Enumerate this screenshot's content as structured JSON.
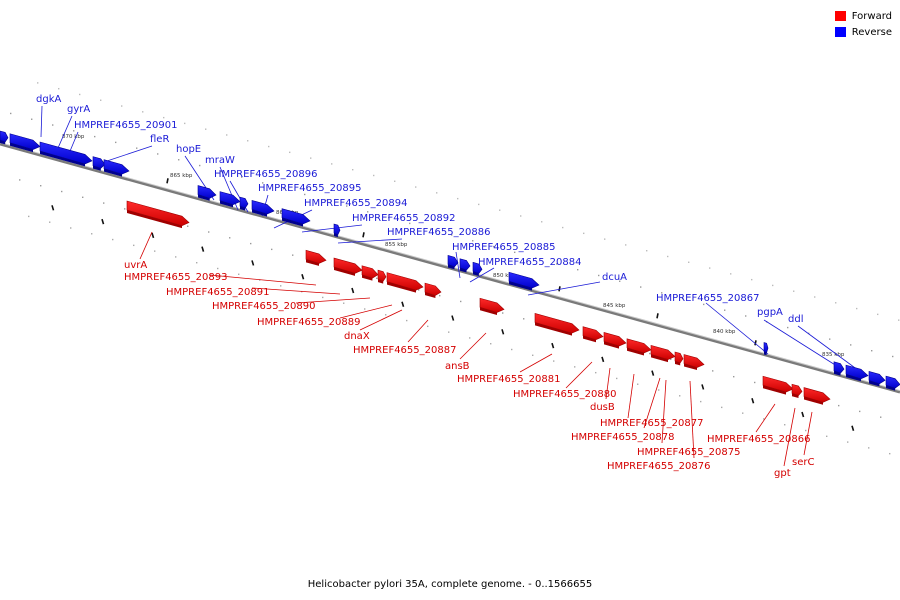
{
  "legend": {
    "forward": {
      "label": "Forward",
      "color": "#ff0000"
    },
    "reverse": {
      "label": "Reverse",
      "color": "#0000ff"
    }
  },
  "caption": "Helicobacter pylori 35A, complete genome. - 0..1566655",
  "ticks": [
    "870 kbp",
    "865 kbp",
    "860 kbp",
    "855 kbp",
    "850 kbp",
    "845 kbp",
    "840 kbp",
    "835 kbp"
  ],
  "genes_reverse": [
    "dgkA",
    "gyrA",
    "HMPREF4655_20901",
    "fleR",
    "hopE",
    "mraW",
    "HMPREF4655_20896",
    "HMPREF4655_20895",
    "HMPREF4655_20894",
    "HMPREF4655_20892",
    "HMPREF4655_20886",
    "HMPREF4655_20885",
    "HMPREF4655_20884",
    "dcuA",
    "HMPREF4655_20867",
    "pgpA",
    "ddl"
  ],
  "genes_forward": [
    "uvrA",
    "HMPREF4655_20893",
    "HMPREF4655_20891",
    "HMPREF4655_20890",
    "HMPREF4655_20889",
    "dnaX",
    "HMPREF4655_20887",
    "ansB",
    "HMPREF4655_20881",
    "HMPREF4655_20880",
    "dusB",
    "HMPREF4655_20877",
    "HMPREF4655_20878",
    "HMPREF4655_20875",
    "HMPREF4655_20876",
    "HMPREF4655_20866",
    "gpt",
    "serC"
  ]
}
